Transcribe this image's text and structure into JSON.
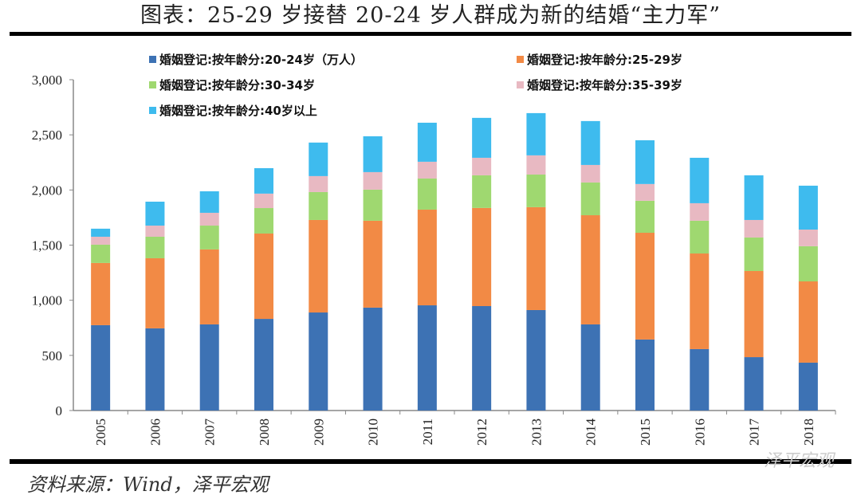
{
  "title": "图表：25-29 岁接替 20-24 岁人群成为新的结婚“主力军”",
  "source": "资料来源：Wind，泽平宏观",
  "watermark": "泽平宏观",
  "chart_data": {
    "type": "bar",
    "stacked": true,
    "categories": [
      "2005",
      "2006",
      "2007",
      "2008",
      "2009",
      "2010",
      "2011",
      "2012",
      "2013",
      "2014",
      "2015",
      "2016",
      "2017",
      "2018"
    ],
    "ylim": [
      0,
      3000
    ],
    "yticks": [
      "0",
      "500",
      "1,000",
      "1,500",
      "2,000",
      "2,500",
      "3,000"
    ],
    "ytick_values": [
      0,
      500,
      1000,
      1500,
      2000,
      2500,
      3000
    ],
    "grid": false,
    "legend_position": "top",
    "series": [
      {
        "name": "婚姻登记:按年龄分:20-24岁（万人）",
        "color": "#3d72b4",
        "values": [
          774,
          745,
          781,
          831,
          889,
          933,
          954,
          947,
          911,
          781,
          644,
          557,
          484,
          434
        ]
      },
      {
        "name": "婚姻登记:按年龄分:25-29岁",
        "color": "#f28a45",
        "values": [
          564,
          636,
          680,
          774,
          839,
          788,
          868,
          890,
          933,
          990,
          968,
          867,
          781,
          737
        ]
      },
      {
        "name": "婚姻登记:按年龄分:30-34岁",
        "color": "#9fd870",
        "values": [
          166,
          195,
          216,
          231,
          253,
          282,
          282,
          296,
          296,
          297,
          290,
          297,
          304,
          319
        ]
      },
      {
        "name": "婚姻登记:按年龄分:35-39岁",
        "color": "#e8b9c2",
        "values": [
          72,
          101,
          116,
          131,
          145,
          159,
          152,
          159,
          174,
          159,
          152,
          159,
          159,
          151
        ]
      },
      {
        "name": "婚姻登记:按年龄分:40岁以上",
        "color": "#3ebbee",
        "values": [
          73,
          217,
          195,
          231,
          304,
          325,
          354,
          362,
          383,
          398,
          397,
          412,
          405,
          398
        ]
      }
    ]
  }
}
